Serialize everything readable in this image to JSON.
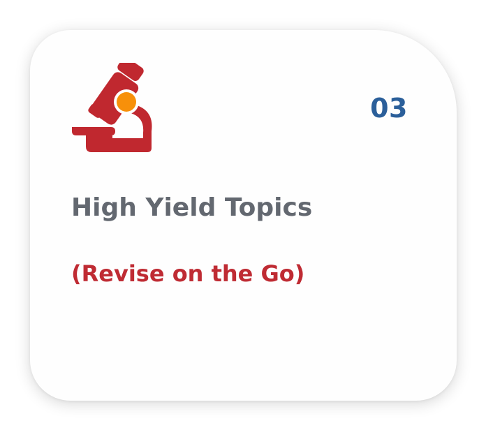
{
  "card": {
    "number": "03",
    "title": "High Yield Topics",
    "subtitle": "(Revise on the Go)",
    "icon": "microscope-icon"
  },
  "colors": {
    "icon_primary": "#c0282f",
    "icon_accent": "#f7900a",
    "number": "#2b5f9a",
    "title": "#636870",
    "subtitle": "#bf2b33",
    "card_background": "#fefefe"
  }
}
